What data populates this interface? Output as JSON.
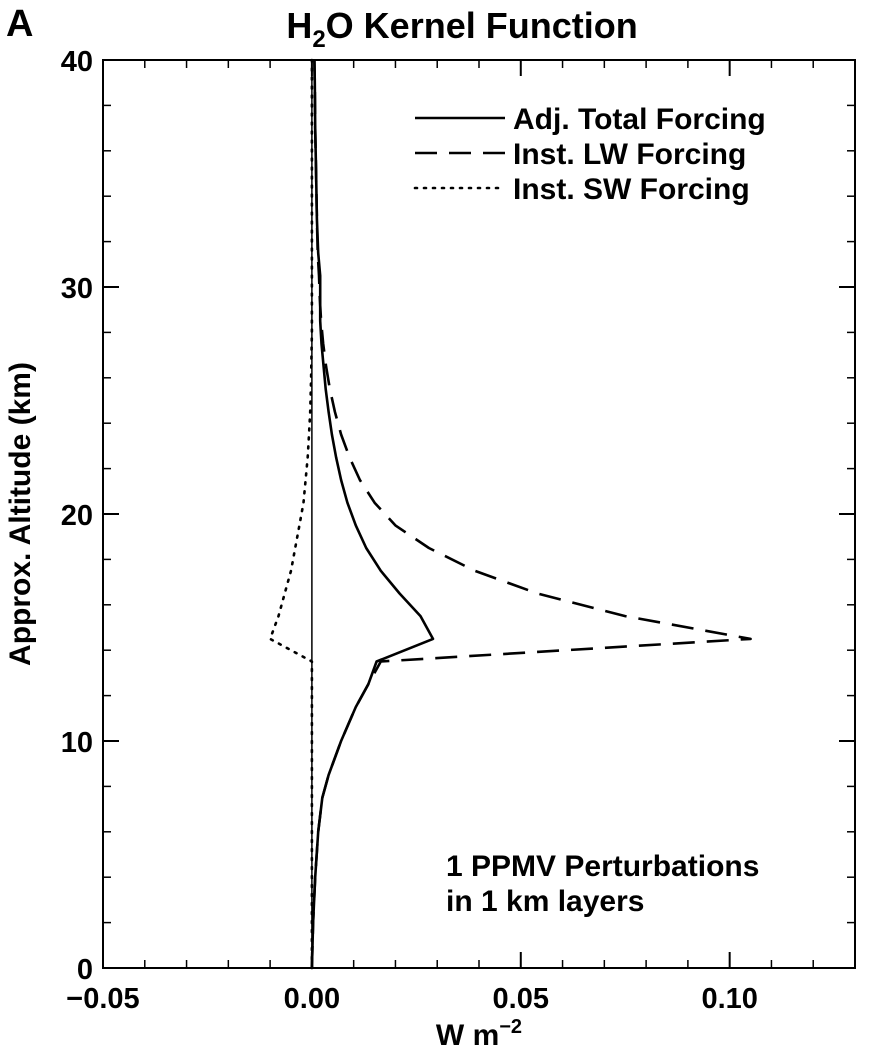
{
  "panel_letter": "A",
  "chart_data": {
    "type": "line",
    "title_main": "H",
    "title_sub": "2",
    "title_rest": "O Kernel Function",
    "xlabel_base": "W m",
    "xlabel_sup": "−2",
    "ylabel": "Approx. Altitude (km)",
    "xlim": [
      -0.05,
      0.13
    ],
    "ylim": [
      0,
      40
    ],
    "x_ticks": [
      {
        "value": -0.05,
        "label": "−0.05"
      },
      {
        "value": 0.0,
        "label": "0.00"
      },
      {
        "value": 0.05,
        "label": "0.05"
      },
      {
        "value": 0.1,
        "label": "0.10"
      }
    ],
    "y_ticks": [
      {
        "value": 0,
        "label": "0"
      },
      {
        "value": 10,
        "label": "10"
      },
      {
        "value": 20,
        "label": "20"
      },
      {
        "value": 30,
        "label": "30"
      },
      {
        "value": 40,
        "label": "40"
      }
    ],
    "legend_position": "top-right",
    "annotation_lines": [
      "1 PPMV Perturbations",
      "in 1 km layers"
    ],
    "series": [
      {
        "name": "Adj. Total Forcing",
        "style": "solid",
        "points": [
          [
            0.0,
            0
          ],
          [
            0.0003,
            2
          ],
          [
            0.0008,
            4
          ],
          [
            0.0015,
            6
          ],
          [
            0.0025,
            7.5
          ],
          [
            0.004,
            8.5
          ],
          [
            0.007,
            10
          ],
          [
            0.0105,
            11.5
          ],
          [
            0.0135,
            12.5
          ],
          [
            0.0155,
            13.5
          ],
          [
            0.029,
            14.5
          ],
          [
            0.026,
            15.5
          ],
          [
            0.021,
            16.5
          ],
          [
            0.0165,
            17.5
          ],
          [
            0.013,
            18.5
          ],
          [
            0.0105,
            19.5
          ],
          [
            0.0085,
            20.5
          ],
          [
            0.007,
            21.5
          ],
          [
            0.0058,
            22.5
          ],
          [
            0.0048,
            23.5
          ],
          [
            0.004,
            24.5
          ],
          [
            0.0033,
            25.5
          ],
          [
            0.0028,
            26.5
          ],
          [
            0.0023,
            27.5
          ],
          [
            0.002,
            28.5
          ],
          [
            0.002,
            29.5
          ],
          [
            0.002,
            30.5
          ],
          [
            0.0015,
            31.5
          ],
          [
            0.0012,
            33
          ],
          [
            0.001,
            35
          ],
          [
            0.0008,
            37
          ],
          [
            0.0007,
            39
          ],
          [
            0.0006,
            40
          ]
        ]
      },
      {
        "name": "Inst. LW Forcing",
        "style": "dashed",
        "points": [
          [
            0.0,
            0
          ],
          [
            0.0003,
            2
          ],
          [
            0.0008,
            4
          ],
          [
            0.0015,
            6
          ],
          [
            0.0025,
            7.5
          ],
          [
            0.004,
            8.5
          ],
          [
            0.007,
            10
          ],
          [
            0.0105,
            11.5
          ],
          [
            0.0135,
            12.5
          ],
          [
            0.0165,
            13.5
          ],
          [
            0.105,
            14.5
          ],
          [
            0.075,
            15.5
          ],
          [
            0.054,
            16.5
          ],
          [
            0.039,
            17.5
          ],
          [
            0.028,
            18.5
          ],
          [
            0.02,
            19.5
          ],
          [
            0.015,
            20.5
          ],
          [
            0.0115,
            21.5
          ],
          [
            0.009,
            22.5
          ],
          [
            0.007,
            23.5
          ],
          [
            0.0055,
            24.5
          ],
          [
            0.0043,
            25.5
          ],
          [
            0.0034,
            26.5
          ],
          [
            0.0027,
            27.5
          ],
          [
            0.0022,
            28.5
          ],
          [
            0.0019,
            29.5
          ],
          [
            0.0017,
            30.5
          ],
          [
            0.0014,
            31.5
          ],
          [
            0.0012,
            33
          ],
          [
            0.001,
            35
          ],
          [
            0.0008,
            37
          ],
          [
            0.0007,
            39
          ],
          [
            0.0006,
            40
          ]
        ]
      },
      {
        "name": "Inst. SW Forcing",
        "style": "dotted",
        "points": [
          [
            0.0,
            0
          ],
          [
            0.0,
            5
          ],
          [
            0.0,
            10
          ],
          [
            0.0,
            12.5
          ],
          [
            0.0,
            13.5
          ],
          [
            -0.01,
            14.5
          ],
          [
            -0.008,
            15.5
          ],
          [
            -0.0065,
            16.5
          ],
          [
            -0.005,
            17.5
          ],
          [
            -0.004,
            18.5
          ],
          [
            -0.003,
            19.5
          ],
          [
            -0.002,
            20.5
          ],
          [
            -0.0015,
            21.5
          ],
          [
            -0.001,
            22.5
          ],
          [
            -0.0007,
            23.5
          ],
          [
            -0.0004,
            24.5
          ],
          [
            -0.0002,
            26
          ],
          [
            0.0,
            28
          ],
          [
            0.0,
            32
          ],
          [
            0.0,
            36
          ],
          [
            0.0,
            40
          ]
        ]
      }
    ]
  }
}
